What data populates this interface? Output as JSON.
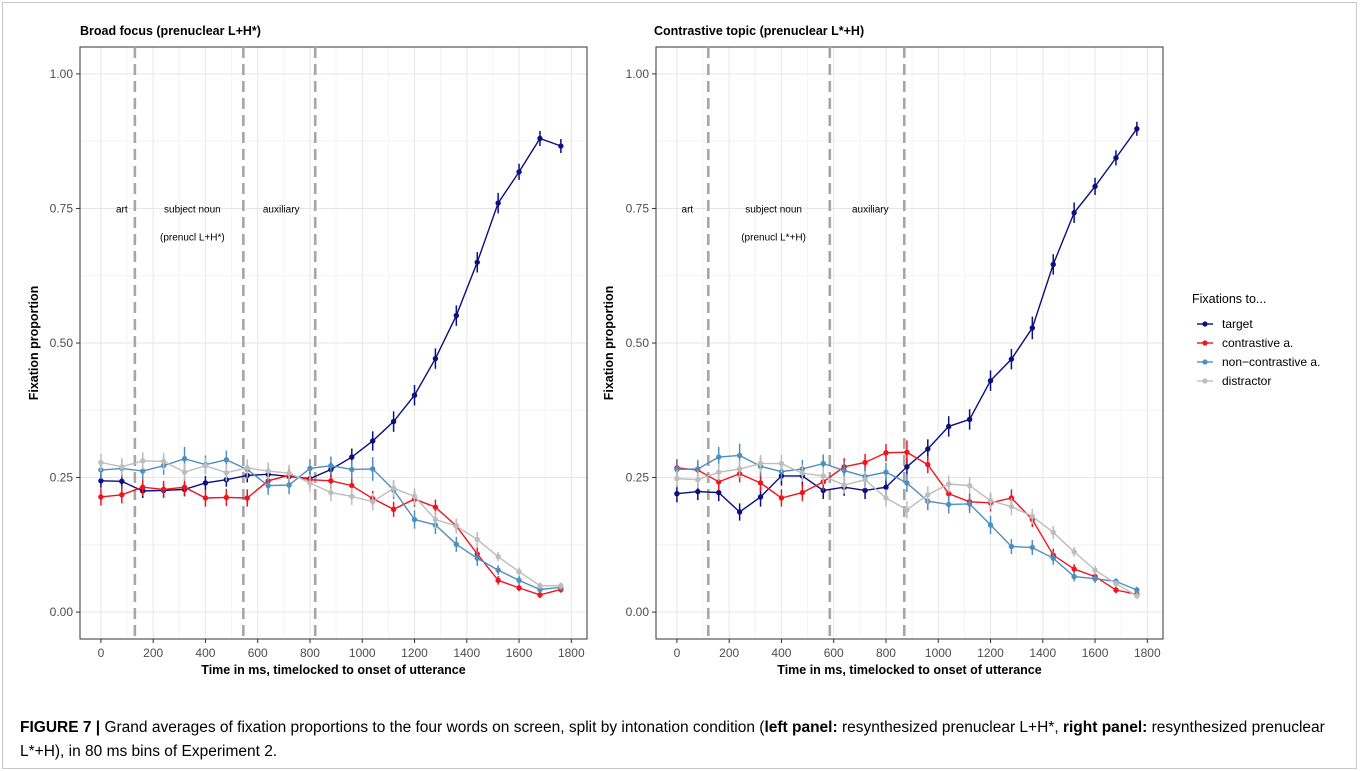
{
  "colors": {
    "target": "#0b0f80",
    "contrastive": "#f0141e",
    "noncontrastive": "#4f8fbf",
    "distractor": "#bdbdbd",
    "grid_major": "#e6e6e6",
    "grid_minor": "#f3f3f3",
    "divider": "#a6a6a6"
  },
  "legend": {
    "title": "Fixations to...",
    "items": [
      {
        "key": "target",
        "label": "target"
      },
      {
        "key": "contrastive",
        "label": "contrastive a."
      },
      {
        "key": "noncontrastive",
        "label": "non−contrastive a."
      },
      {
        "key": "distractor",
        "label": "distractor"
      }
    ]
  },
  "caption": {
    "figure_label": "FIGURE 7 |",
    "text_1": " Grand averages of fixation proportions to the four words on screen, split by intonation condition (",
    "bold_1": "left panel:",
    "text_2": " resynthesized prenuclear L+H*, ",
    "bold_2": "right panel:",
    "text_3": " resynthesized prenuclear L*+H), in 80 ms bins of Experiment 2."
  },
  "chart_data": [
    {
      "type": "line",
      "title": "Broad focus (prenuclear L+H*)",
      "xlabel": "Time in ms, timelocked to onset of utterance",
      "ylabel": "Fixation proportion",
      "xlim": [
        -80,
        1860
      ],
      "ylim": [
        -0.05,
        1.05
      ],
      "xticks": [
        0,
        200,
        400,
        600,
        800,
        1000,
        1200,
        1400,
        1600,
        1800
      ],
      "xtick_labels": [
        "0",
        "200",
        "400",
        "600",
        "800",
        "1000",
        "1200",
        "1400",
        "1600",
        "1800"
      ],
      "yticks": [
        0,
        0.25,
        0.5,
        0.75,
        1.0
      ],
      "ytick_labels": [
        "0.00",
        "0.25",
        "0.50",
        "0.75",
        "1.00"
      ],
      "grid": true,
      "region_boundaries": [
        130,
        545,
        820
      ],
      "region_labels": [
        {
          "x": 80,
          "lines": [
            "art"
          ]
        },
        {
          "x": 350,
          "lines": [
            "subject noun",
            "(prenucl L+H*)"
          ]
        },
        {
          "x": 690,
          "lines": [
            "auxiliary"
          ]
        }
      ],
      "x": [
        0,
        80,
        160,
        240,
        320,
        400,
        480,
        560,
        640,
        720,
        800,
        880,
        960,
        1040,
        1120,
        1200,
        1280,
        1360,
        1440,
        1520,
        1600,
        1680,
        1760
      ],
      "series": [
        {
          "key": "target",
          "name": "target",
          "values": [
            0.244,
            0.243,
            0.225,
            0.226,
            0.228,
            0.24,
            0.246,
            0.254,
            0.256,
            0.252,
            0.248,
            0.265,
            0.288,
            0.318,
            0.354,
            0.403,
            0.471,
            0.551,
            0.65,
            0.76,
            0.818,
            0.88,
            0.866
          ],
          "errors": [
            0.013,
            0.013,
            0.013,
            0.013,
            0.013,
            0.013,
            0.013,
            0.013,
            0.013,
            0.013,
            0.013,
            0.014,
            0.016,
            0.018,
            0.019,
            0.019,
            0.019,
            0.019,
            0.019,
            0.019,
            0.015,
            0.014,
            0.013
          ]
        },
        {
          "key": "contrastive",
          "name": "contrastive a.",
          "values": [
            0.214,
            0.218,
            0.232,
            0.228,
            0.232,
            0.212,
            0.213,
            0.212,
            0.244,
            0.254,
            0.246,
            0.244,
            0.235,
            0.211,
            0.191,
            0.21,
            0.195,
            0.16,
            0.108,
            0.059,
            0.045,
            0.032,
            0.042
          ],
          "errors": [
            0.016,
            0.016,
            0.016,
            0.016,
            0.016,
            0.016,
            0.016,
            0.016,
            0.014,
            0.014,
            0.014,
            0.014,
            0.014,
            0.014,
            0.014,
            0.014,
            0.014,
            0.012,
            0.012,
            0.008,
            0.006,
            0.006,
            0.006
          ]
        },
        {
          "key": "noncontrastive",
          "name": "non−contrastive a.",
          "values": [
            0.264,
            0.267,
            0.262,
            0.272,
            0.285,
            0.274,
            0.283,
            0.265,
            0.235,
            0.236,
            0.267,
            0.272,
            0.265,
            0.266,
            0.227,
            0.172,
            0.162,
            0.126,
            0.1,
            0.078,
            0.059,
            0.042,
            0.046
          ],
          "errors": [
            0.017,
            0.017,
            0.017,
            0.017,
            0.022,
            0.017,
            0.017,
            0.017,
            0.017,
            0.017,
            0.017,
            0.017,
            0.017,
            0.022,
            0.017,
            0.017,
            0.017,
            0.014,
            0.014,
            0.009,
            0.008,
            0.006,
            0.006
          ]
        },
        {
          "key": "distractor",
          "name": "distractor",
          "values": [
            0.278,
            0.27,
            0.281,
            0.28,
            0.26,
            0.272,
            0.259,
            0.268,
            0.262,
            0.258,
            0.24,
            0.222,
            0.215,
            0.205,
            0.23,
            0.215,
            0.172,
            0.16,
            0.135,
            0.103,
            0.075,
            0.049,
            0.049
          ],
          "errors": [
            0.016,
            0.016,
            0.016,
            0.016,
            0.016,
            0.016,
            0.016,
            0.016,
            0.016,
            0.016,
            0.016,
            0.016,
            0.016,
            0.016,
            0.016,
            0.016,
            0.016,
            0.014,
            0.014,
            0.009,
            0.008,
            0.006,
            0.006
          ]
        }
      ]
    },
    {
      "type": "line",
      "title": "Contrastive topic (prenuclear L*+H)",
      "xlabel": "Time in ms, timelocked to onset of utterance",
      "ylabel": "Fixation proportion",
      "xlim": [
        -80,
        1860
      ],
      "ylim": [
        -0.05,
        1.05
      ],
      "xticks": [
        0,
        200,
        400,
        600,
        800,
        1000,
        1200,
        1400,
        1600,
        1800
      ],
      "xtick_labels": [
        "0",
        "200",
        "400",
        "600",
        "800",
        "1000",
        "1200",
        "1400",
        "1600",
        "1800"
      ],
      "yticks": [
        0,
        0.25,
        0.5,
        0.75,
        1.0
      ],
      "ytick_labels": [
        "0.00",
        "0.25",
        "0.50",
        "0.75",
        "1.00"
      ],
      "grid": true,
      "region_boundaries": [
        120,
        585,
        870
      ],
      "region_labels": [
        {
          "x": 40,
          "lines": [
            "art"
          ]
        },
        {
          "x": 370,
          "lines": [
            "subject noun",
            "(prenucl L*+H)"
          ]
        },
        {
          "x": 740,
          "lines": [
            "auxiliary"
          ]
        }
      ],
      "x": [
        0,
        80,
        160,
        240,
        320,
        400,
        480,
        560,
        640,
        720,
        800,
        880,
        960,
        1040,
        1120,
        1200,
        1280,
        1360,
        1440,
        1520,
        1600,
        1680,
        1760
      ],
      "series": [
        {
          "key": "target",
          "name": "target",
          "values": [
            0.22,
            0.224,
            0.222,
            0.186,
            0.214,
            0.253,
            0.253,
            0.226,
            0.232,
            0.226,
            0.232,
            0.27,
            0.303,
            0.345,
            0.358,
            0.43,
            0.47,
            0.528,
            0.646,
            0.742,
            0.791,
            0.844,
            0.898
          ],
          "errors": [
            0.016,
            0.016,
            0.016,
            0.016,
            0.018,
            0.018,
            0.018,
            0.016,
            0.016,
            0.016,
            0.016,
            0.016,
            0.018,
            0.019,
            0.019,
            0.019,
            0.019,
            0.021,
            0.019,
            0.019,
            0.016,
            0.014,
            0.013
          ]
        },
        {
          "key": "contrastive",
          "name": "contrastive a.",
          "values": [
            0.268,
            0.264,
            0.242,
            0.257,
            0.24,
            0.212,
            0.222,
            0.242,
            0.27,
            0.278,
            0.296,
            0.297,
            0.274,
            0.22,
            0.205,
            0.203,
            0.212,
            0.172,
            0.106,
            0.08,
            0.066,
            0.041,
            0.033
          ],
          "errors": [
            0.016,
            0.016,
            0.016,
            0.016,
            0.016,
            0.016,
            0.016,
            0.016,
            0.016,
            0.016,
            0.016,
            0.022,
            0.016,
            0.016,
            0.016,
            0.016,
            0.016,
            0.014,
            0.012,
            0.009,
            0.006,
            0.006,
            0.006
          ]
        },
        {
          "key": "noncontrastive",
          "name": "non−contrastive a.",
          "values": [
            0.265,
            0.266,
            0.288,
            0.291,
            0.271,
            0.261,
            0.266,
            0.276,
            0.263,
            0.252,
            0.26,
            0.24,
            0.206,
            0.2,
            0.201,
            0.162,
            0.122,
            0.12,
            0.1,
            0.066,
            0.062,
            0.057,
            0.041
          ],
          "errors": [
            0.017,
            0.017,
            0.019,
            0.022,
            0.017,
            0.017,
            0.017,
            0.017,
            0.017,
            0.017,
            0.017,
            0.017,
            0.017,
            0.017,
            0.017,
            0.017,
            0.014,
            0.014,
            0.012,
            0.009,
            0.008,
            0.006,
            0.006
          ]
        },
        {
          "key": "distractor",
          "name": "distractor",
          "values": [
            0.248,
            0.246,
            0.26,
            0.266,
            0.276,
            0.276,
            0.258,
            0.253,
            0.236,
            0.246,
            0.212,
            0.19,
            0.218,
            0.238,
            0.235,
            0.207,
            0.196,
            0.178,
            0.148,
            0.112,
            0.078,
            0.053,
            0.03
          ],
          "errors": [
            0.016,
            0.016,
            0.016,
            0.016,
            0.016,
            0.016,
            0.016,
            0.016,
            0.016,
            0.016,
            0.016,
            0.016,
            0.016,
            0.016,
            0.016,
            0.016,
            0.016,
            0.014,
            0.012,
            0.009,
            0.008,
            0.006,
            0.006
          ]
        }
      ]
    }
  ]
}
